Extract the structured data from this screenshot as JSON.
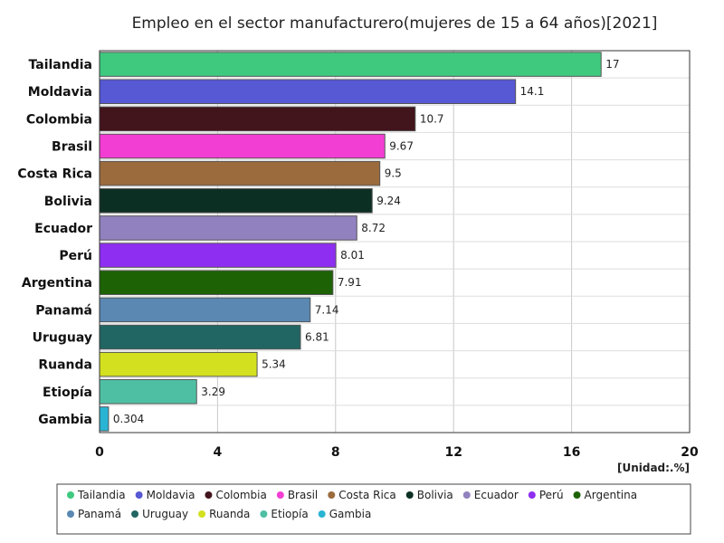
{
  "chart_data": {
    "type": "bar",
    "orientation": "horizontal",
    "title": "Empleo en el sector manufacturero(mujeres de 15 a 64 años)[2021]",
    "unit": "[Unidad:.%]",
    "xlim": [
      0,
      20
    ],
    "xticks": [
      0,
      4,
      8,
      12,
      16,
      20
    ],
    "grid": true,
    "legend_position": "bottom",
    "categories": [
      "Tailandia",
      "Moldavia",
      "Colombia",
      "Brasil",
      "Costa Rica",
      "Bolivia",
      "Ecuador",
      "Perú",
      "Argentina",
      "Panamá",
      "Uruguay",
      "Ruanda",
      "Etiopía",
      "Gambia"
    ],
    "values": [
      17,
      14.1,
      10.7,
      9.67,
      9.5,
      9.24,
      8.72,
      8.01,
      7.91,
      7.14,
      6.81,
      5.34,
      3.29,
      0.304
    ],
    "value_labels": [
      "17",
      "14.1",
      "10.7",
      "9.67",
      "9.5",
      "9.24",
      "8.72",
      "8.01",
      "7.91",
      "7.14",
      "6.81",
      "5.34",
      "3.29",
      "0.304"
    ],
    "colors": [
      "#3ec97f",
      "#5758d4",
      "#42141c",
      "#f33ed3",
      "#9b6b3d",
      "#0c2f24",
      "#9181bf",
      "#8e2ef0",
      "#1d6306",
      "#5a88b2",
      "#226663",
      "#d3e020",
      "#4fbfa4",
      "#2ab4d4"
    ]
  }
}
